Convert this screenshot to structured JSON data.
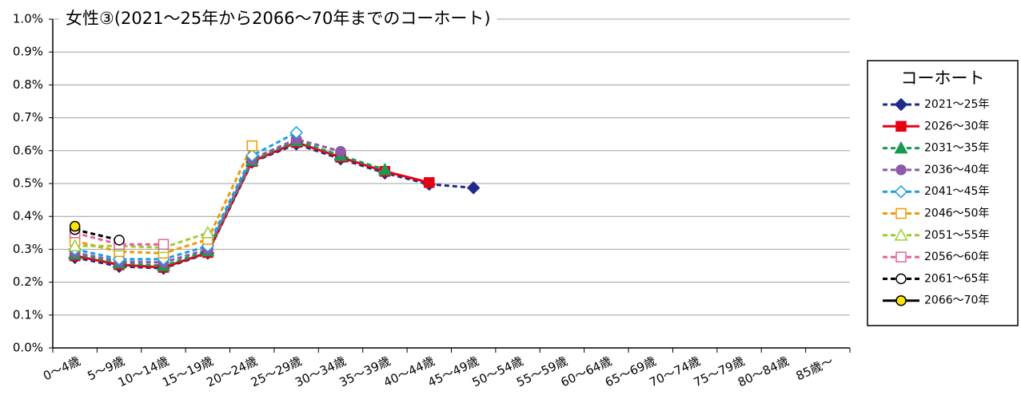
{
  "chart_data": {
    "type": "line",
    "title": "女性③(2021～25年から2066～70年までのコーホート)",
    "categories": [
      "0～4歳",
      "5～9歳",
      "10～14歳",
      "15～19歳",
      "20～24歳",
      "25～29歳",
      "30～34歳",
      "35～39歳",
      "40～44歳",
      "45～49歳",
      "50～54歳",
      "55～59歳",
      "60～64歳",
      "65～69歳",
      "70～74歳",
      "75～79歳",
      "80～84歳",
      "85歳～"
    ],
    "ylim": [
      0,
      1.0
    ],
    "yticks": [
      {
        "value": 0,
        "label": "0.0%"
      },
      {
        "value": 0.1,
        "label": "0.1%"
      },
      {
        "value": 0.2,
        "label": "0.2%"
      },
      {
        "value": 0.3,
        "label": "0.3%"
      },
      {
        "value": 0.4,
        "label": "0.4%"
      },
      {
        "value": 0.5,
        "label": "0.5%"
      },
      {
        "value": 0.6,
        "label": "0.6%"
      },
      {
        "value": 0.7,
        "label": "0.7%"
      },
      {
        "value": 0.8,
        "label": "0.8%"
      },
      {
        "value": 0.9,
        "label": "0.9%"
      },
      {
        "value": 1.0,
        "label": "1.0%"
      }
    ],
    "grid": true,
    "legend_title": "コーホート",
    "legend": "right",
    "series": [
      {
        "name": "2021～25年",
        "color": "#1f2a8a",
        "marker": "diamond",
        "filled": true,
        "dashed": true,
        "values": [
          0.275,
          0.248,
          0.242,
          0.288,
          0.565,
          0.62,
          0.575,
          0.532,
          0.498,
          0.487,
          null,
          null,
          null,
          null,
          null,
          null,
          null,
          null
        ]
      },
      {
        "name": "2026～30年",
        "color": "#e60012",
        "marker": "square",
        "filled": true,
        "dashed": false,
        "values": [
          0.28,
          0.253,
          0.245,
          0.29,
          0.567,
          0.625,
          0.58,
          0.537,
          0.503,
          null,
          null,
          null,
          null,
          null,
          null,
          null,
          null,
          null
        ]
      },
      {
        "name": "2031～35年",
        "color": "#1a9a50",
        "marker": "triangle",
        "filled": true,
        "dashed": true,
        "values": [
          0.285,
          0.258,
          0.25,
          0.295,
          0.57,
          0.63,
          0.585,
          0.542,
          null,
          null,
          null,
          null,
          null,
          null,
          null,
          null,
          null,
          null
        ]
      },
      {
        "name": "2036～40年",
        "color": "#8e5aa8",
        "marker": "circle",
        "filled": true,
        "dashed": true,
        "values": [
          0.29,
          0.263,
          0.26,
          0.3,
          0.575,
          0.635,
          0.598,
          null,
          null,
          null,
          null,
          null,
          null,
          null,
          null,
          null,
          null,
          null
        ]
      },
      {
        "name": "2041～45年",
        "color": "#1aa0e0",
        "marker": "diamond",
        "filled": false,
        "dashed": true,
        "values": [
          0.3,
          0.27,
          0.27,
          0.31,
          0.585,
          0.655,
          null,
          null,
          null,
          null,
          null,
          null,
          null,
          null,
          null,
          null,
          null,
          null
        ]
      },
      {
        "name": "2046～50年",
        "color": "#f39800",
        "marker": "square",
        "filled": false,
        "dashed": true,
        "values": [
          0.325,
          0.293,
          0.288,
          0.33,
          0.615,
          null,
          null,
          null,
          null,
          null,
          null,
          null,
          null,
          null,
          null,
          null,
          null,
          null
        ]
      },
      {
        "name": "2051～55年",
        "color": "#9acd32",
        "marker": "triangle",
        "filled": false,
        "dashed": true,
        "values": [
          0.31,
          0.31,
          0.305,
          0.35,
          null,
          null,
          null,
          null,
          null,
          null,
          null,
          null,
          null,
          null,
          null,
          null,
          null,
          null
        ]
      },
      {
        "name": "2056～60年",
        "color": "#e8609a",
        "marker": "square",
        "filled": false,
        "dashed": true,
        "values": [
          0.35,
          0.315,
          0.315,
          null,
          null,
          null,
          null,
          null,
          null,
          null,
          null,
          null,
          null,
          null,
          null,
          null,
          null,
          null
        ]
      },
      {
        "name": "2061～65年",
        "color": "#000000",
        "marker": "circle",
        "filled": false,
        "dashed": true,
        "values": [
          0.36,
          0.328,
          null,
          null,
          null,
          null,
          null,
          null,
          null,
          null,
          null,
          null,
          null,
          null,
          null,
          null,
          null,
          null
        ]
      },
      {
        "name": "2066～70年",
        "color": "#000000",
        "marker": "circle",
        "filled": true,
        "marker_fill": "#ffe600",
        "dashed": false,
        "values": [
          0.37,
          null,
          null,
          null,
          null,
          null,
          null,
          null,
          null,
          null,
          null,
          null,
          null,
          null,
          null,
          null,
          null,
          null
        ]
      }
    ]
  }
}
